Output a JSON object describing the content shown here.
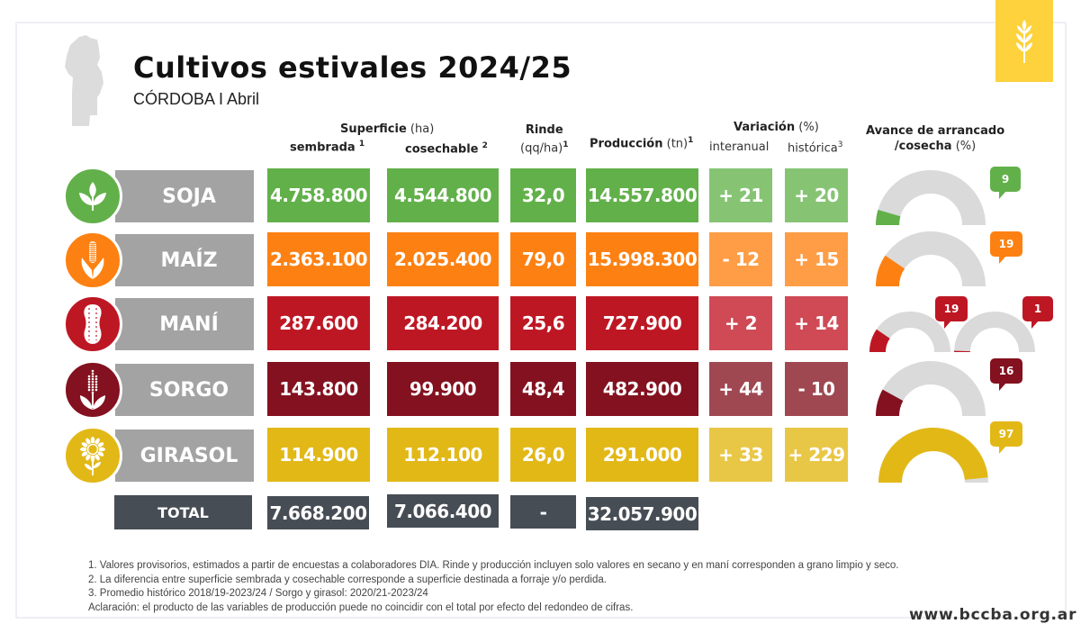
{
  "header": {
    "title": "Cultivos estivales 2024/25",
    "subtitle": "CÓRDOBA I Abril",
    "logo_icon": "wheat-icon",
    "map_icon": "cordoba-province-map-icon"
  },
  "columns": {
    "superficie": {
      "title": "Superficie",
      "unit": "(ha)"
    },
    "sembrada": {
      "title": "sembrada",
      "sup": "1"
    },
    "cosechable": {
      "title": "cosechable",
      "sup": "2"
    },
    "rinde": {
      "title": "Rinde",
      "unit": "(qq/ha)",
      "sup": "1"
    },
    "produccion": {
      "title": "Producción",
      "unit": "(tn)",
      "sup": "1"
    },
    "variacion": {
      "title": "Variación",
      "unit": "(%)"
    },
    "interanual": {
      "title": "interanual"
    },
    "historica": {
      "title": "histórica",
      "sup": "3"
    },
    "avance": {
      "title_line1": "Avance de arrancado",
      "title_line2": "/cosecha",
      "unit": "(%)"
    }
  },
  "colors": {
    "soja": "#62b04a",
    "soja_light": "#86c474",
    "maiz": "#fd8112",
    "maiz_light": "#fe9d45",
    "mani": "#be1724",
    "mani_light": "#cf4a55",
    "sorgo": "#83111f",
    "sorgo_light": "#9f4852",
    "girasol": "#e2b817",
    "girasol_light": "#e9c746",
    "total": "#474d54",
    "label_gray": "#a3a3a3",
    "gauge_track": "#dadada",
    "logo": "#fdd23c"
  },
  "chart_data": {
    "type": "table",
    "title": "Cultivos estivales 2024/25",
    "subtitle": "CÓRDOBA I Abril",
    "rows": [
      {
        "crop": "SOJA",
        "icon": "soybean-sprout-icon",
        "sembrada": "4.758.800",
        "cosechable": "4.544.800",
        "rinde": "32,0",
        "produccion": "14.557.800",
        "interanual": "+ 21",
        "historica": "+ 20",
        "avance": [
          9
        ]
      },
      {
        "crop": "MAÍZ",
        "icon": "corn-cob-icon",
        "sembrada": "2.363.100",
        "cosechable": "2.025.400",
        "rinde": "79,0",
        "produccion": "15.998.300",
        "interanual": "- 12",
        "historica": "+ 15",
        "avance": [
          19
        ]
      },
      {
        "crop": "MANÍ",
        "icon": "peanut-icon",
        "sembrada": "287.600",
        "cosechable": "284.200",
        "rinde": "25,6",
        "produccion": "727.900",
        "interanual": "+ 2",
        "historica": "+ 14",
        "avance": [
          19,
          1
        ]
      },
      {
        "crop": "SORGO",
        "icon": "sorghum-icon",
        "sembrada": "143.800",
        "cosechable": "99.900",
        "rinde": "48,4",
        "produccion": "482.900",
        "interanual": "+ 44",
        "historica": "- 10",
        "avance": [
          16
        ]
      },
      {
        "crop": "GIRASOL",
        "icon": "sunflower-icon",
        "sembrada": "114.900",
        "cosechable": "112.100",
        "rinde": "26,0",
        "produccion": "291.000",
        "interanual": "+ 33",
        "historica": "+ 229",
        "avance": [
          97
        ]
      }
    ],
    "total": {
      "label": "TOTAL",
      "sembrada": "7.668.200",
      "cosechable": "7.066.400",
      "rinde": "-",
      "produccion": "32.057.900"
    },
    "gauge_range": [
      0,
      100
    ]
  },
  "footnotes": [
    "1. Valores provisorios, estimados a partir de encuestas a colaboradores DIA. Rinde y producción incluyen solo valores en secano y en maní corresponden a grano limpio y seco.",
    "2. La diferencia entre superficie sembrada y cosechable corresponde a superficie destinada a forraje y/o perdida.",
    "3. Promedio histórico 2018/19-2023/24 / Sorgo y girasol: 2020/21-2023/24",
    "Aclaración: el producto de las variables de producción puede no coincidir con el total por efecto del redondeo de cifras."
  ],
  "website": "www.bccba.org.ar"
}
